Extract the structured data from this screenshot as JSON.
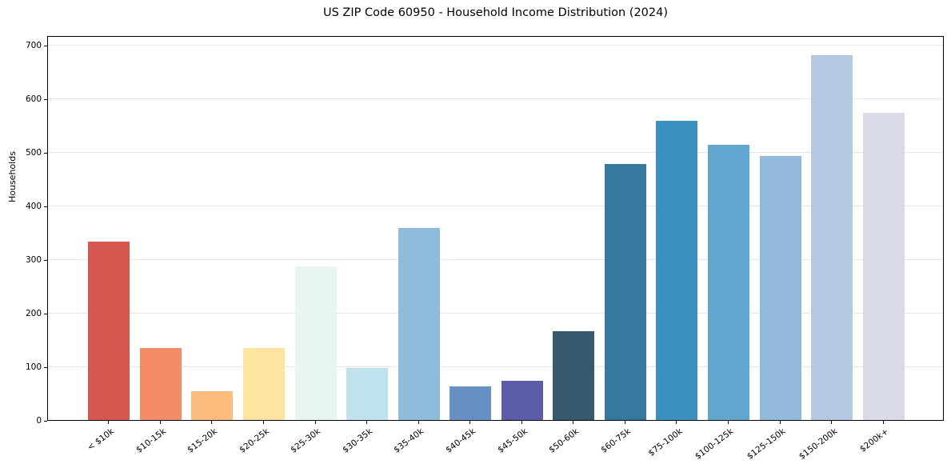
{
  "chart_data": {
    "type": "bar",
    "title": "US ZIP Code 60950 - Household Income Distribution (2024)",
    "ylabel": "Households",
    "xlabel": "",
    "categories": [
      "< $10k",
      "$10-15k",
      "$15-20k",
      "$20-25k",
      "$25-30k",
      "$30-35k",
      "$35-40k",
      "$40-45k",
      "$45-50k",
      "$50-60k",
      "$60-75k",
      "$75-100k",
      "$100-125k",
      "$125-150k",
      "$150-200k",
      "$200k+"
    ],
    "values": [
      333,
      135,
      54,
      135,
      286,
      97,
      358,
      63,
      73,
      165,
      478,
      558,
      513,
      492,
      681,
      573
    ],
    "bar_colors": [
      "#d5574f",
      "#f48c68",
      "#fbbc7e",
      "#fde5a0",
      "#e9f5f1",
      "#c0e2ec",
      "#90bcdb",
      "#6791c5",
      "#5c5cab",
      "#36596f",
      "#37789e",
      "#3990c1",
      "#5fa7cf",
      "#94badb",
      "#b3c8e1",
      "#d8dae8"
    ],
    "ylim": [
      0,
      718
    ],
    "yticks": [
      0,
      100,
      200,
      300,
      400,
      500,
      600,
      700
    ],
    "grid": "horizontal",
    "gridline_color": "#e6e6e6",
    "axis_color": "#000000",
    "background": "#ffffff",
    "legend": "none"
  }
}
